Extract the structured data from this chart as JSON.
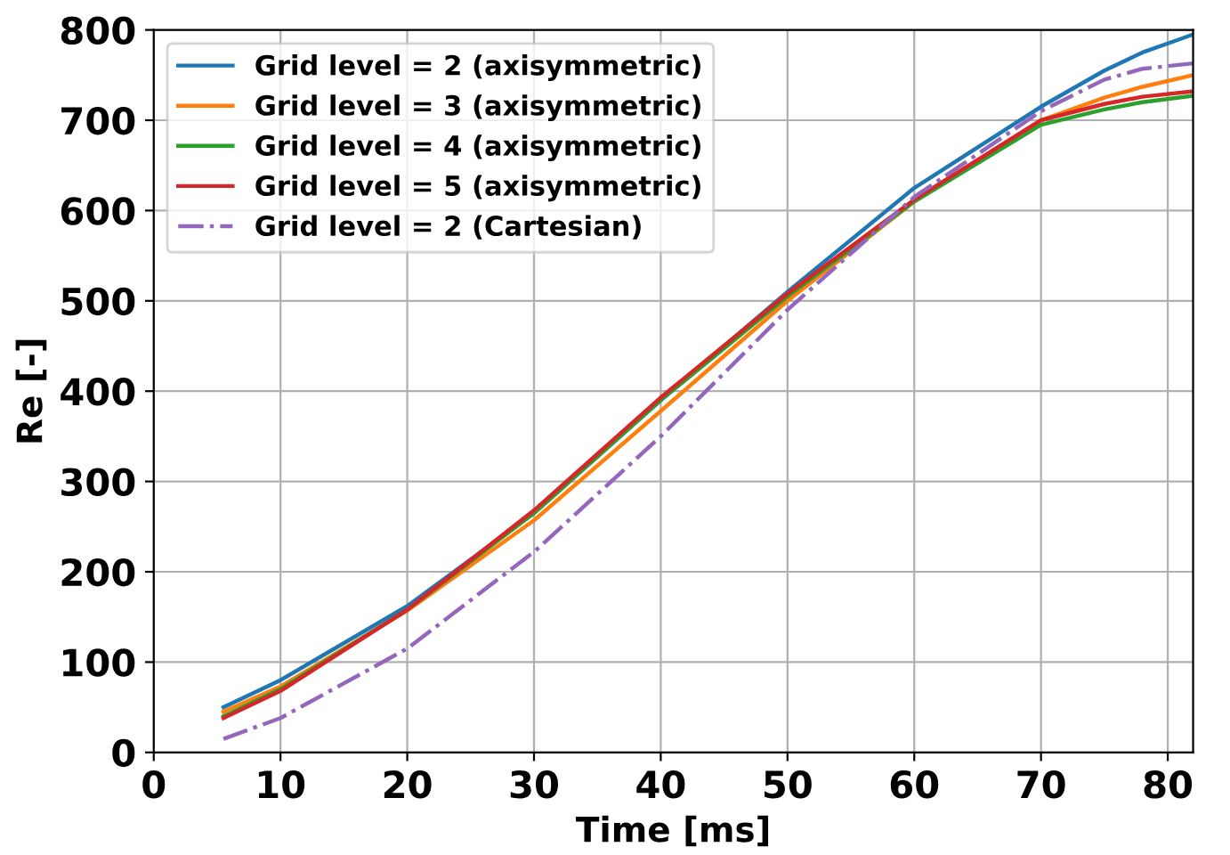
{
  "chart_data": {
    "type": "line",
    "xlabel": "Time [ms]",
    "ylabel": "Re [-]",
    "xlim": [
      0,
      82
    ],
    "xticks": [
      0,
      10,
      20,
      30,
      40,
      50,
      60,
      70,
      80
    ],
    "ylim": [
      0,
      800
    ],
    "yticks": [
      0,
      100,
      200,
      300,
      400,
      500,
      600,
      700,
      800
    ],
    "grid": true,
    "legend": "top left",
    "series": [
      {
        "name": "Grid level = 2 (axisymmetric)",
        "color": "#1f77b4",
        "line_style": "solid",
        "x": [
          5.5,
          10,
          20,
          30,
          40,
          50,
          60,
          70,
          75,
          78,
          81,
          82
        ],
        "values": [
          50,
          80,
          162,
          265,
          390,
          510,
          625,
          715,
          755,
          775,
          790,
          795
        ]
      },
      {
        "name": "Grid level = 3 (axisymmetric)",
        "color": "#ff7f0e",
        "line_style": "solid",
        "x": [
          5.5,
          10,
          20,
          30,
          40,
          50,
          60,
          70,
          75,
          78,
          82
        ],
        "values": [
          45,
          73,
          157,
          257,
          378,
          500,
          610,
          700,
          725,
          737,
          750
        ]
      },
      {
        "name": "Grid level = 4 (axisymmetric)",
        "color": "#2ca02c",
        "line_style": "solid",
        "x": [
          5.5,
          10,
          20,
          30,
          40,
          50,
          60,
          70,
          75,
          78,
          82
        ],
        "values": [
          40,
          70,
          158,
          265,
          390,
          505,
          610,
          695,
          712,
          720,
          727
        ]
      },
      {
        "name": "Grid level = 5 (axisymmetric)",
        "color": "#d62728",
        "line_style": "solid",
        "x": [
          5.5,
          10,
          20,
          30,
          40,
          50,
          60,
          70,
          75,
          78,
          82
        ],
        "values": [
          38,
          68,
          158,
          268,
          393,
          508,
          612,
          700,
          718,
          726,
          732
        ]
      },
      {
        "name": "Grid level = 2 (Cartesian)",
        "color": "#9467bd",
        "line_style": "dashdot",
        "x": [
          5.5,
          10,
          20,
          30,
          40,
          50,
          60,
          70,
          75,
          78,
          82
        ],
        "values": [
          15,
          38,
          115,
          222,
          350,
          490,
          615,
          710,
          745,
          757,
          763
        ]
      }
    ]
  }
}
